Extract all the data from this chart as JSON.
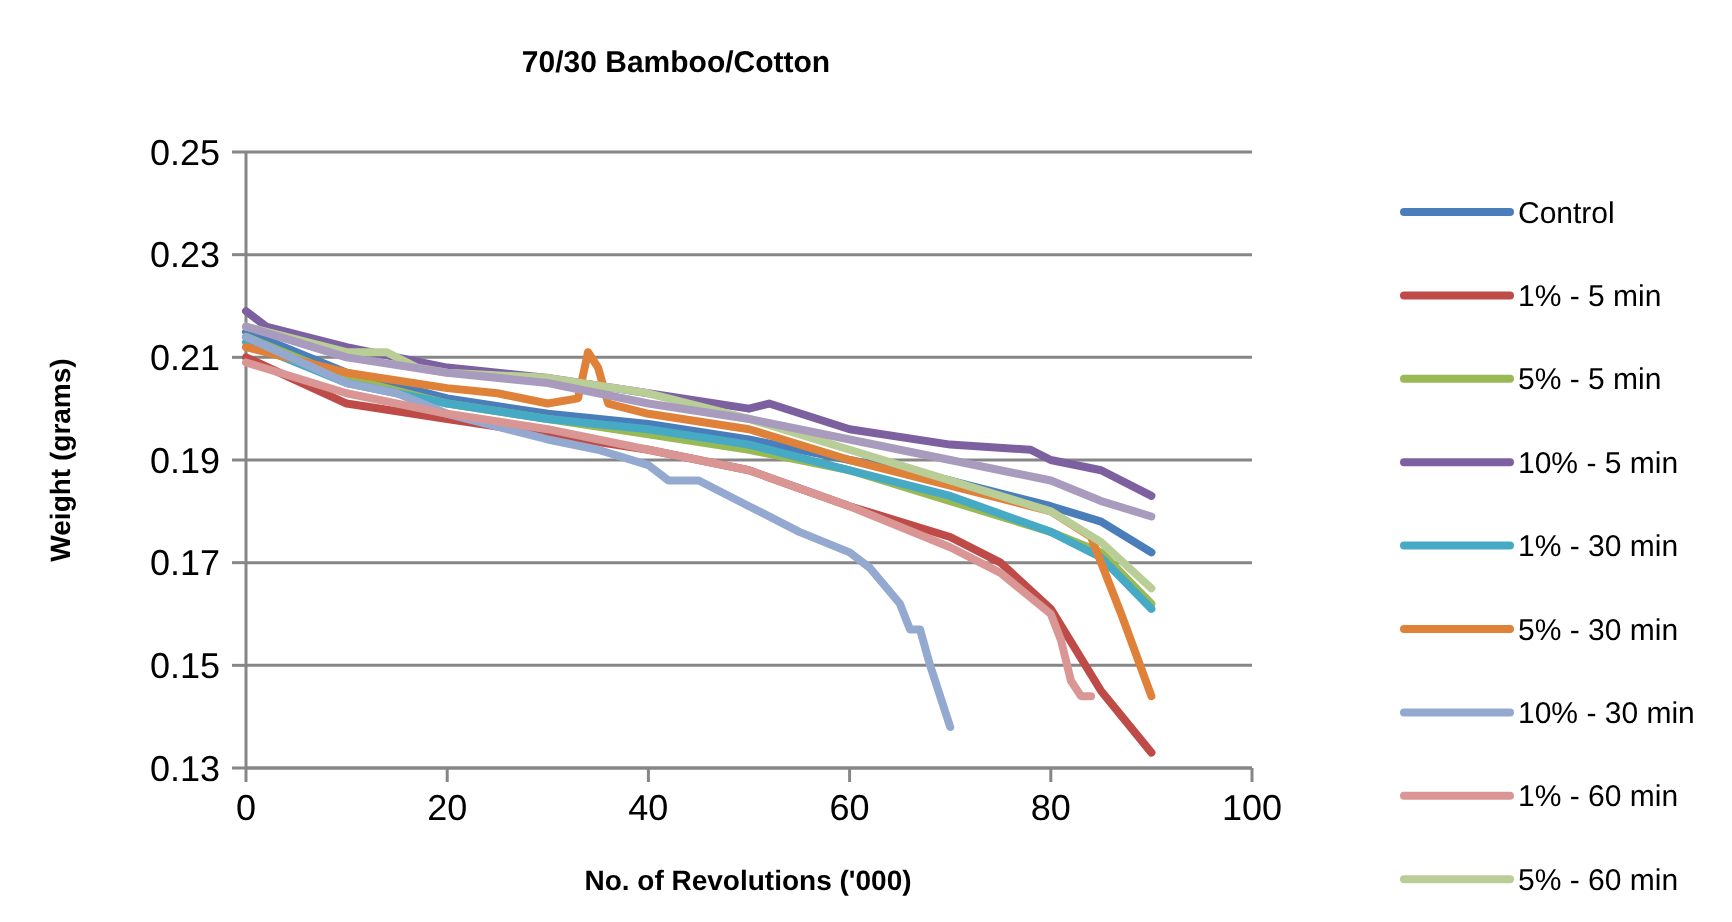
{
  "chart_data": {
    "type": "line",
    "title": "70/30 Bamboo/Cotton",
    "xlabel": "No. of Revolutions ('000)",
    "ylabel": "Weight (grams)",
    "xlim": [
      0,
      100
    ],
    "xticks": [
      0,
      20,
      40,
      60,
      80,
      100
    ],
    "ylim": [
      0.13,
      0.25
    ],
    "yticks": [
      0.13,
      0.15,
      0.17,
      0.19,
      0.21,
      0.23,
      0.25
    ],
    "grid": "y",
    "legend": "right",
    "marker": "none",
    "line_style": "solid",
    "series": [
      {
        "name": "Control",
        "color": "#4a7ebb",
        "x": [
          0,
          10,
          20,
          30,
          40,
          50,
          60,
          70,
          80,
          85,
          90
        ],
        "values": [
          0.215,
          0.207,
          0.202,
          0.199,
          0.197,
          0.194,
          0.19,
          0.186,
          0.181,
          0.178,
          0.172
        ]
      },
      {
        "name": "1% - 5 min",
        "color": "#be4b48",
        "x": [
          0,
          10,
          20,
          30,
          40,
          50,
          60,
          70,
          75,
          80,
          85,
          90
        ],
        "values": [
          0.21,
          0.201,
          0.198,
          0.195,
          0.192,
          0.188,
          0.181,
          0.175,
          0.17,
          0.161,
          0.145,
          0.133
        ]
      },
      {
        "name": "5% - 5 min",
        "color": "#98b954",
        "x": [
          0,
          10,
          20,
          30,
          40,
          50,
          60,
          70,
          80,
          85,
          90
        ],
        "values": [
          0.214,
          0.206,
          0.201,
          0.198,
          0.195,
          0.192,
          0.188,
          0.182,
          0.176,
          0.172,
          0.162
        ]
      },
      {
        "name": "10% - 5 min",
        "color": "#7d60a0",
        "x": [
          0,
          2,
          10,
          20,
          30,
          40,
          50,
          52,
          60,
          70,
          78,
          80,
          85,
          90
        ],
        "values": [
          0.219,
          0.216,
          0.212,
          0.208,
          0.206,
          0.203,
          0.2,
          0.201,
          0.196,
          0.193,
          0.192,
          0.19,
          0.188,
          0.183
        ]
      },
      {
        "name": "1% - 30 min",
        "color": "#46aac5",
        "x": [
          0,
          10,
          20,
          30,
          40,
          50,
          60,
          70,
          80,
          85,
          90
        ],
        "values": [
          0.213,
          0.205,
          0.201,
          0.198,
          0.196,
          0.193,
          0.188,
          0.183,
          0.176,
          0.171,
          0.161
        ]
      },
      {
        "name": "5% - 30 min",
        "color": "#e0813a",
        "x": [
          0,
          10,
          20,
          25,
          30,
          33,
          34,
          35,
          36,
          40,
          50,
          60,
          70,
          80,
          84,
          87,
          90
        ],
        "values": [
          0.212,
          0.207,
          0.204,
          0.203,
          0.201,
          0.202,
          0.211,
          0.208,
          0.201,
          0.199,
          0.196,
          0.19,
          0.185,
          0.18,
          0.175,
          0.16,
          0.144
        ]
      },
      {
        "name": "10% - 30 min",
        "color": "#93a9cf",
        "x": [
          0,
          10,
          15,
          20,
          30,
          35,
          40,
          42,
          45,
          50,
          55,
          60,
          62,
          65,
          66,
          67,
          68,
          70
        ],
        "values": [
          0.214,
          0.205,
          0.203,
          0.199,
          0.194,
          0.192,
          0.189,
          0.186,
          0.186,
          0.181,
          0.176,
          0.172,
          0.169,
          0.162,
          0.157,
          0.157,
          0.15,
          0.138
        ]
      },
      {
        "name": "1% - 60 min",
        "color": "#d99694",
        "x": [
          0,
          10,
          20,
          30,
          40,
          50,
          60,
          70,
          75,
          80,
          81,
          82,
          83,
          84
        ],
        "values": [
          0.209,
          0.203,
          0.199,
          0.196,
          0.192,
          0.188,
          0.181,
          0.173,
          0.168,
          0.16,
          0.155,
          0.147,
          0.144,
          0.144
        ]
      },
      {
        "name": "5% - 60 min",
        "color": "#b9cd96",
        "x": [
          0,
          10,
          14,
          17,
          20,
          30,
          40,
          50,
          60,
          70,
          80,
          85,
          90
        ],
        "values": [
          0.216,
          0.211,
          0.211,
          0.208,
          0.207,
          0.206,
          0.203,
          0.198,
          0.192,
          0.186,
          0.18,
          0.174,
          0.165
        ]
      },
      {
        "color": "#a99bbd",
        "x": [
          0,
          10,
          20,
          30,
          40,
          50,
          60,
          70,
          80,
          85,
          90
        ],
        "values": [
          0.216,
          0.21,
          0.207,
          0.205,
          0.201,
          0.198,
          0.194,
          0.19,
          0.186,
          0.182,
          0.179
        ]
      }
    ]
  }
}
